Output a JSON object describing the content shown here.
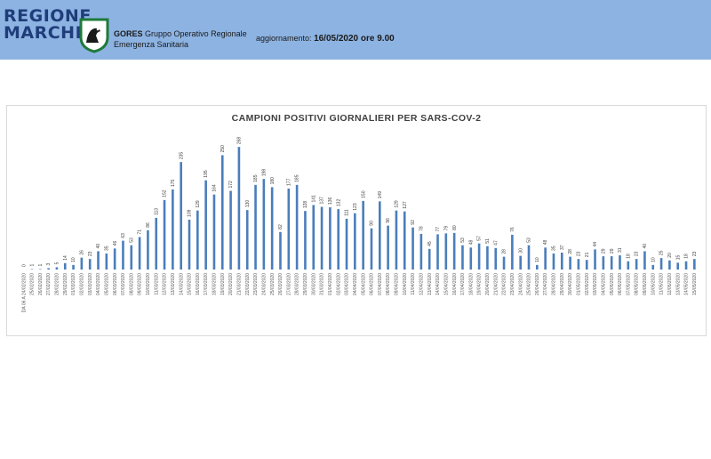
{
  "header": {
    "logo_line1": "REGIONE",
    "logo_line2": "MARCHE",
    "org_acronym": "GORES",
    "org_line1": "Gruppo Operativo Regionale",
    "org_line2": "Emergenza Sanitaria",
    "update_label": "aggiornamento:",
    "update_value": "16/05/2020 ore 9.00",
    "background_color": "#8db3e2",
    "logo_color": "#1f3d7a"
  },
  "chart_data": {
    "type": "bar",
    "title": "CAMPIONI POSITIVI GIORNALIERI PER SARS-COV-2",
    "xlabel": "",
    "ylabel": "",
    "ylim": [
      0,
      280
    ],
    "grid": false,
    "bar_color": "#4a7ebb",
    "categories": [
      "DA 06 A 24/02/2020",
      "25/02/2020",
      "26/02/2020",
      "27/02/2020",
      "28/02/2020",
      "29/02/2020",
      "01/03/2020",
      "02/03/2020",
      "03/03/2020",
      "04/03/2020",
      "05/03/2020",
      "06/03/2020",
      "07/03/2020",
      "08/03/2020",
      "09/03/2020",
      "10/03/2020",
      "11/03/2020",
      "12/03/2020",
      "13/03/2020",
      "14/03/2020",
      "15/03/2020",
      "16/03/2020",
      "17/03/2020",
      "18/03/2020",
      "19/03/2020",
      "20/03/2020",
      "21/03/2020",
      "22/03/2020",
      "23/03/2020",
      "24/03/2020",
      "25/03/2020",
      "26/03/2020",
      "27/03/2020",
      "28/03/2020",
      "29/03/2020",
      "30/03/2020",
      "31/03/2020",
      "01/04/2020",
      "02/04/2020",
      "03/04/2020",
      "04/04/2020",
      "05/04/2020",
      "06/04/2020",
      "07/04/2020",
      "08/04/2020",
      "09/04/2020",
      "10/04/2020",
      "11/04/2020",
      "12/04/2020",
      "13/04/2020",
      "14/04/2020",
      "15/04/2020",
      "16/04/2020",
      "17/04/2020",
      "18/04/2020",
      "19/04/2020",
      "20/04/2020",
      "21/04/2020",
      "22/04/2020",
      "23/04/2020",
      "24/04/2020",
      "25/04/2020",
      "26/04/2020",
      "27/04/2020",
      "28/04/2020",
      "29/04/2020",
      "30/04/2020",
      "01/05/2020",
      "02/05/2020",
      "03/05/2020",
      "04/05/2020",
      "05/05/2020",
      "06/05/2020",
      "07/05/2020",
      "08/05/2020",
      "09/05/2020",
      "10/05/2020",
      "11/05/2020",
      "12/05/2020",
      "13/05/2020",
      "14/05/2020",
      "15/05/2020"
    ],
    "values": [
      0,
      1,
      1,
      3,
      5,
      14,
      10,
      26,
      23,
      40,
      35,
      46,
      63,
      53,
      71,
      86,
      113,
      152,
      175,
      235,
      109,
      129,
      195,
      164,
      250,
      172,
      268,
      130,
      185,
      198,
      180,
      82,
      177,
      185,
      128,
      141,
      137,
      136,
      132,
      111,
      123,
      150,
      90,
      149,
      96,
      129,
      127,
      92,
      78,
      45,
      77,
      79,
      80,
      53,
      48,
      57,
      51,
      47,
      28,
      76,
      30,
      53,
      10,
      48,
      35,
      37,
      28,
      23,
      21,
      44,
      29,
      29,
      31,
      18,
      23,
      40,
      10,
      25,
      20,
      15,
      18,
      23
    ]
  }
}
